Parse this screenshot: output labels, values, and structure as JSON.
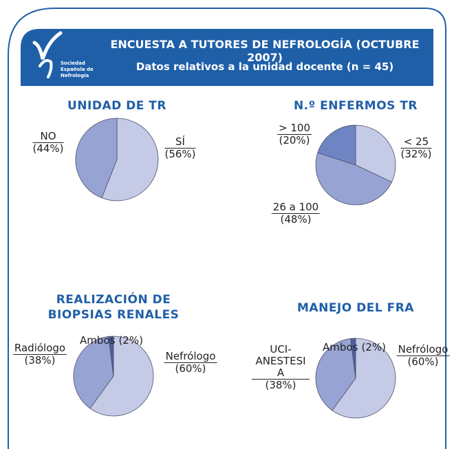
{
  "header": {
    "title": "ENCUESTA A TUTORES DE NEFROLOGÍA (OCTUBRE 2007)",
    "subtitle": "Datos relativos a la unidad docente (n = 45)",
    "logo_text": [
      "Sociedad",
      "Española de",
      "Nefrología"
    ]
  },
  "chart_data": [
    {
      "type": "pie",
      "title": "UNIDAD DE TR",
      "categories": [
        "SÍ",
        "NO"
      ],
      "values": [
        56,
        44
      ],
      "value_labels": [
        "(56%)",
        "(44%)"
      ],
      "colors": [
        "#c5cbe6",
        "#97a3d3"
      ]
    },
    {
      "type": "pie",
      "title": "N.º ENFERMOS TR",
      "categories": [
        "< 25",
        "26 a 100",
        "> 100"
      ],
      "values": [
        32,
        48,
        20
      ],
      "value_labels": [
        "(32%)",
        "(48%)",
        "(20%)"
      ],
      "colors": [
        "#c5cbe6",
        "#97a3d3",
        "#6f84c2"
      ]
    },
    {
      "type": "pie",
      "title": "REALIZACIÓN DE BIOPSIAS RENALES",
      "categories": [
        "Nefrólogo",
        "Radiólogo",
        "Ambos"
      ],
      "values": [
        60,
        38,
        2
      ],
      "value_labels": [
        "(60%)",
        "(38%)",
        "(2%)"
      ],
      "colors": [
        "#c5cbe6",
        "#97a3d3",
        "#4f5f9e"
      ]
    },
    {
      "type": "pie",
      "title": "MANEJO DEL FRA",
      "categories": [
        "Nefrólogo",
        "UCI-ANESTESIA",
        "Ambos"
      ],
      "values": [
        60,
        38,
        2
      ],
      "value_labels": [
        "(60%)",
        "(38%)",
        "(2%)"
      ],
      "colors": [
        "#c5cbe6",
        "#97a3d3",
        "#4f5f9e"
      ]
    }
  ]
}
